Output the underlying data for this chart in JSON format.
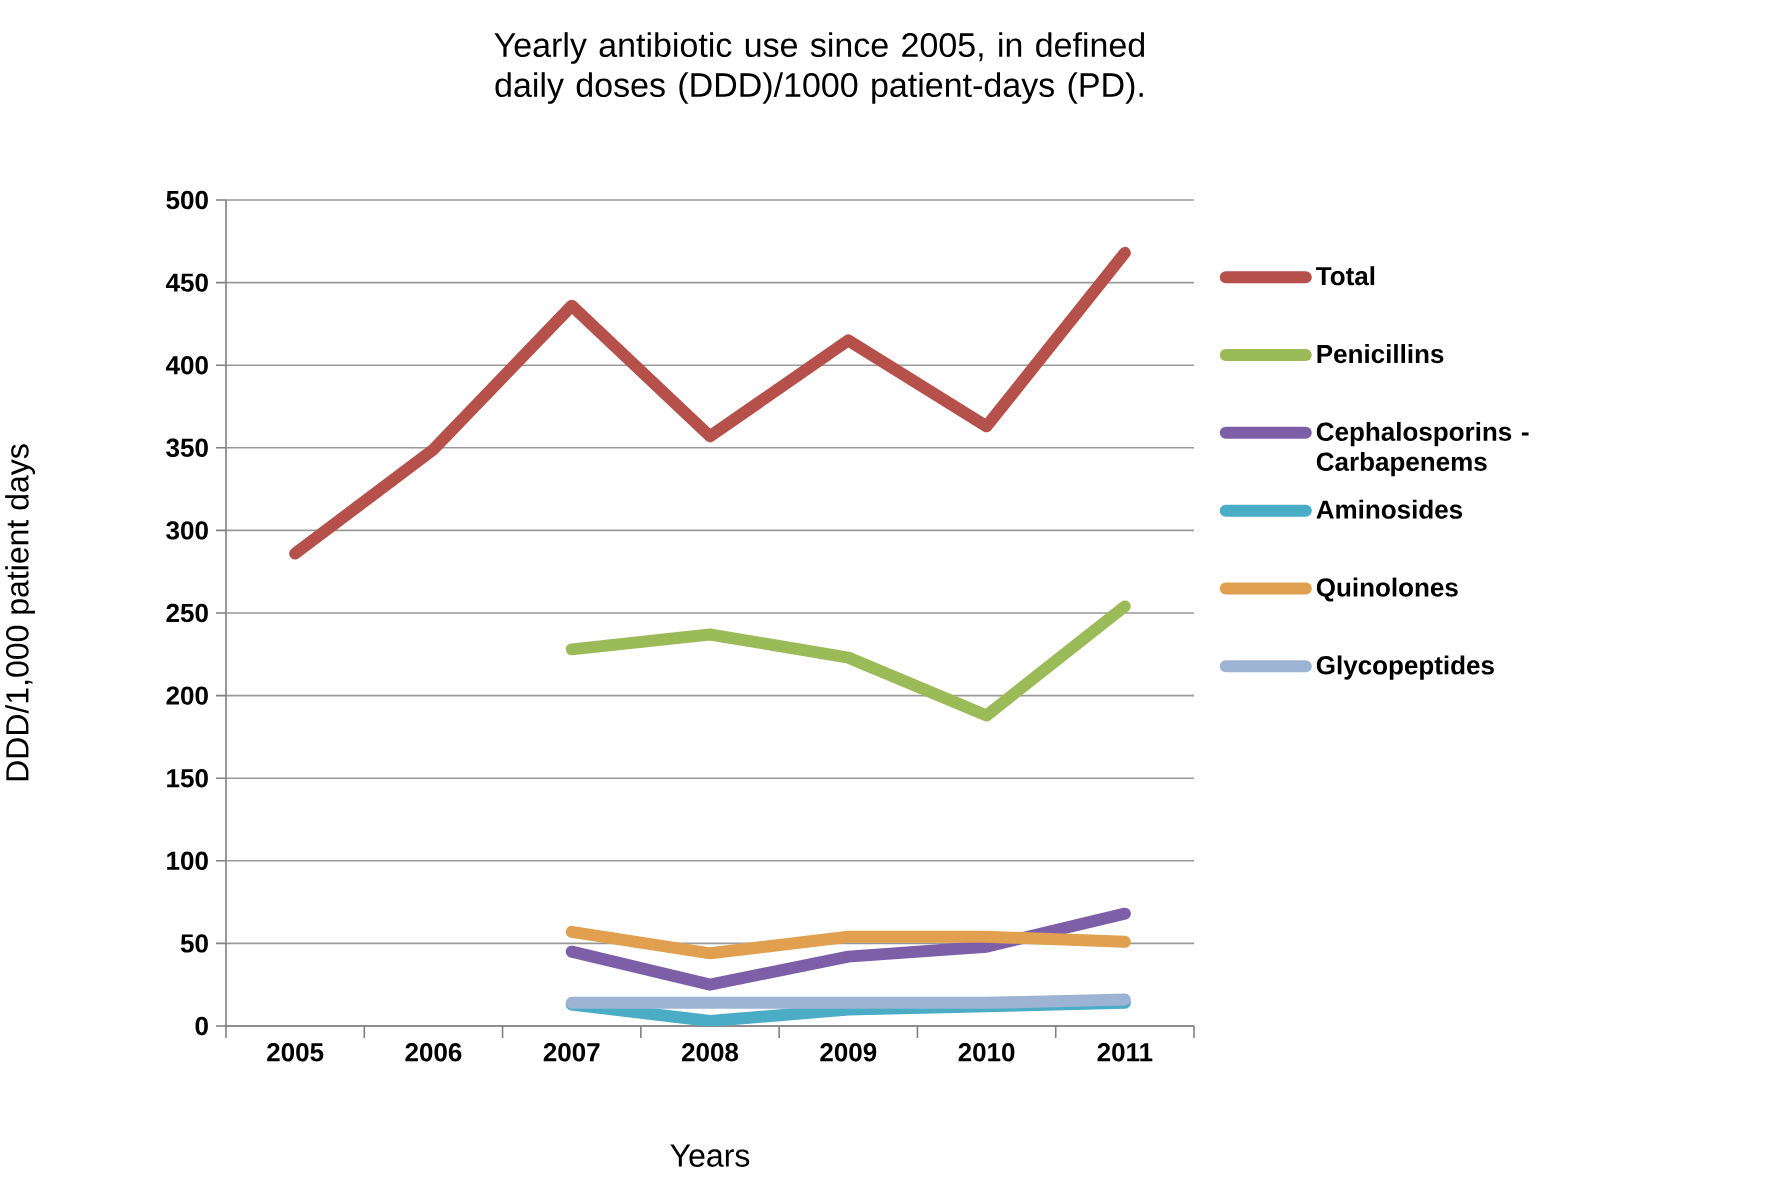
{
  "chart_data": {
    "type": "line",
    "title": "Yearly antibiotic use since 2005, in defined daily doses (DDD)/1000 patient-days (PD).",
    "xlabel": "Years",
    "ylabel": "DDD/1,000 patient days",
    "categories": [
      "2005",
      "2006",
      "2007",
      "2008",
      "2009",
      "2010",
      "2011"
    ],
    "series": [
      {
        "name": "Total",
        "color": "#b5504b",
        "values": [
          286,
          349,
          436,
          357,
          415,
          363,
          468
        ]
      },
      {
        "name": "Penicillins",
        "color": "#9bbb59",
        "values": [
          null,
          null,
          228,
          237,
          223,
          188,
          254
        ]
      },
      {
        "name": "Cephalosporins - Carbapenems",
        "color": "#7d5fa8",
        "values": [
          null,
          null,
          45,
          25,
          42,
          48,
          68
        ]
      },
      {
        "name": "Aminosides",
        "color": "#4bacc6",
        "values": [
          null,
          null,
          13,
          3,
          10,
          12,
          14
        ]
      },
      {
        "name": "Quinolones",
        "color": "#e0a050",
        "values": [
          null,
          null,
          57,
          44,
          54,
          54,
          51
        ]
      },
      {
        "name": "Glycopeptides",
        "color": "#9db3d4",
        "values": [
          null,
          null,
          14,
          14,
          14,
          14,
          16
        ]
      }
    ],
    "ylim": [
      0,
      500
    ],
    "yticks": [
      0,
      50,
      100,
      150,
      200,
      250,
      300,
      350,
      400,
      450,
      500
    ],
    "grid": "y",
    "legend": "right",
    "marker": "none",
    "line_style": "solid"
  }
}
